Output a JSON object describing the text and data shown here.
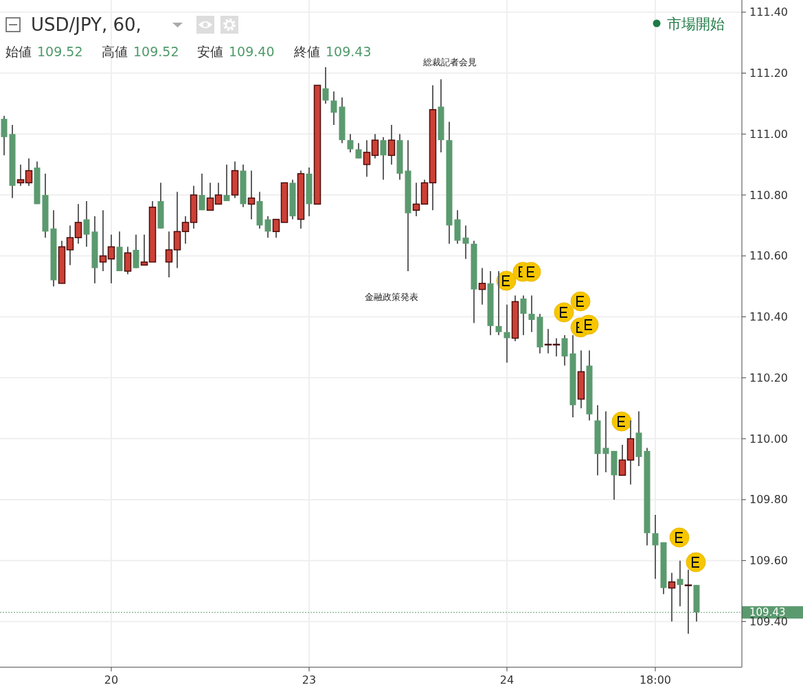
{
  "chart_data": {
    "type": "candlestick",
    "title": "USD/JPY, 60,",
    "categories": [
      null,
      null,
      null,
      null,
      null,
      null,
      null,
      null,
      null,
      null,
      null,
      null,
      null,
      "20",
      null,
      null,
      null,
      null,
      null,
      null,
      null,
      null,
      null,
      null,
      null,
      null,
      null,
      null,
      null,
      null,
      null,
      null,
      null,
      null,
      null,
      null,
      null,
      "23",
      null,
      null,
      null,
      null,
      null,
      null,
      null,
      null,
      null,
      null,
      null,
      null,
      null,
      null,
      null,
      null,
      null,
      null,
      null,
      null,
      null,
      null,
      null,
      "24",
      null,
      null,
      null,
      null,
      null,
      null,
      null,
      null,
      null,
      null,
      null,
      null,
      null,
      null,
      null,
      null,
      null,
      "18:00",
      null,
      null,
      null,
      null,
      null
    ],
    "ohlc": [
      [
        111.05,
        111.06,
        110.93,
        110.99
      ],
      [
        111.0,
        111.03,
        110.79,
        110.83
      ],
      [
        110.84,
        110.9,
        110.83,
        110.85
      ],
      [
        110.84,
        110.92,
        110.83,
        110.88
      ],
      [
        110.89,
        110.91,
        110.77,
        110.77
      ],
      [
        110.8,
        110.87,
        110.66,
        110.68
      ],
      [
        110.69,
        110.75,
        110.5,
        110.52
      ],
      [
        110.51,
        110.65,
        110.51,
        110.63
      ],
      [
        110.62,
        110.7,
        110.57,
        110.66
      ],
      [
        110.66,
        110.77,
        110.64,
        110.71
      ],
      [
        110.72,
        110.78,
        110.63,
        110.67
      ],
      [
        110.68,
        110.73,
        110.51,
        110.56
      ],
      [
        110.58,
        110.75,
        110.55,
        110.6
      ],
      [
        110.59,
        110.67,
        110.51,
        110.63
      ],
      [
        110.63,
        110.68,
        110.55,
        110.55
      ],
      [
        110.55,
        110.63,
        110.54,
        110.61
      ],
      [
        110.62,
        110.67,
        110.56,
        110.56
      ],
      [
        110.57,
        110.67,
        110.57,
        110.58
      ],
      [
        110.58,
        110.78,
        110.58,
        110.76
      ],
      [
        110.78,
        110.84,
        110.69,
        110.69
      ],
      [
        110.58,
        110.68,
        110.53,
        110.62
      ],
      [
        110.62,
        110.81,
        110.56,
        110.68
      ],
      [
        110.68,
        110.73,
        110.64,
        110.71
      ],
      [
        110.71,
        110.83,
        110.69,
        110.8
      ],
      [
        110.8,
        110.87,
        110.75,
        110.75
      ],
      [
        110.75,
        110.84,
        110.75,
        110.79
      ],
      [
        110.77,
        110.84,
        110.77,
        110.8
      ],
      [
        110.8,
        110.9,
        110.78,
        110.78
      ],
      [
        110.8,
        110.91,
        110.79,
        110.88
      ],
      [
        110.88,
        110.9,
        110.76,
        110.77
      ],
      [
        110.77,
        110.88,
        110.72,
        110.79
      ],
      [
        110.78,
        110.81,
        110.69,
        110.7
      ],
      [
        110.72,
        110.73,
        110.66,
        110.68
      ],
      [
        110.68,
        110.72,
        110.66,
        110.72
      ],
      [
        110.71,
        110.84,
        110.71,
        110.84
      ],
      [
        110.84,
        110.85,
        110.72,
        110.73
      ],
      [
        110.72,
        110.88,
        110.69,
        110.87
      ],
      [
        110.87,
        110.89,
        110.73,
        110.77
      ],
      [
        110.77,
        111.16,
        110.77,
        111.16
      ],
      [
        111.15,
        111.22,
        111.1,
        111.11
      ],
      [
        111.11,
        111.14,
        111.03,
        111.07
      ],
      [
        111.09,
        111.12,
        110.97,
        110.98
      ],
      [
        110.98,
        111.0,
        110.94,
        110.95
      ],
      [
        110.95,
        110.97,
        110.92,
        110.92
      ],
      [
        110.9,
        110.98,
        110.86,
        110.94
      ],
      [
        110.93,
        111.0,
        110.92,
        110.98
      ],
      [
        110.98,
        110.99,
        110.85,
        110.93
      ],
      [
        110.93,
        111.03,
        110.9,
        110.98
      ],
      [
        110.98,
        111.0,
        110.85,
        110.87
      ],
      [
        110.88,
        110.98,
        110.55,
        110.74
      ],
      [
        110.75,
        110.84,
        110.73,
        110.77
      ],
      [
        110.77,
        110.85,
        110.77,
        110.84
      ],
      [
        110.84,
        111.16,
        110.75,
        111.08
      ],
      [
        111.09,
        111.18,
        110.94,
        110.98
      ],
      [
        110.98,
        111.04,
        110.64,
        110.7
      ],
      [
        110.72,
        110.75,
        110.64,
        110.65
      ],
      [
        110.66,
        110.7,
        110.59,
        110.64
      ],
      [
        110.64,
        110.65,
        110.38,
        110.49
      ],
      [
        110.49,
        110.56,
        110.44,
        110.51
      ],
      [
        110.51,
        110.55,
        110.34,
        110.37
      ],
      [
        110.37,
        110.55,
        110.34,
        110.35
      ],
      [
        110.35,
        110.44,
        110.25,
        110.33
      ],
      [
        110.33,
        110.47,
        110.32,
        110.45
      ],
      [
        110.46,
        110.47,
        110.34,
        110.41
      ],
      [
        110.41,
        110.47,
        110.35,
        110.39
      ],
      [
        110.4,
        110.41,
        110.28,
        110.3
      ],
      [
        110.31,
        110.36,
        110.28,
        110.31
      ],
      [
        110.31,
        110.33,
        110.27,
        110.31
      ],
      [
        110.33,
        110.34,
        110.24,
        110.27
      ],
      [
        110.28,
        110.34,
        110.07,
        110.11
      ],
      [
        110.13,
        110.29,
        110.1,
        110.22
      ],
      [
        110.24,
        110.29,
        110.06,
        110.08
      ],
      [
        110.06,
        110.11,
        109.88,
        109.95
      ],
      [
        109.97,
        110.09,
        109.89,
        109.95
      ],
      [
        109.96,
        109.96,
        109.8,
        109.88
      ],
      [
        109.88,
        109.98,
        109.88,
        109.93
      ],
      [
        109.93,
        110.06,
        109.85,
        110.0
      ],
      [
        110.02,
        110.09,
        109.91,
        109.94
      ],
      [
        109.96,
        109.97,
        109.65,
        109.69
      ],
      [
        109.69,
        109.75,
        109.54,
        109.65
      ],
      [
        109.66,
        109.66,
        109.49,
        109.51
      ],
      [
        109.51,
        109.56,
        109.4,
        109.53
      ],
      [
        109.54,
        109.6,
        109.45,
        109.52
      ],
      [
        109.52,
        109.57,
        109.36,
        109.52
      ],
      [
        109.52,
        109.52,
        109.4,
        109.43
      ]
    ],
    "colors": [
      "#5b9a6f",
      "#5b9a6f",
      "#cc4136",
      "#cc4136",
      "#5b9a6f",
      "#5b9a6f",
      "#5b9a6f",
      "#cc4136",
      "#cc4136",
      "#cc4136",
      "#5b9a6f",
      "#5b9a6f",
      "#cc4136",
      "#cc4136",
      "#5b9a6f",
      "#cc4136",
      "#5b9a6f",
      "#cc4136",
      "#cc4136",
      "#5b9a6f",
      "#cc4136",
      "#cc4136",
      "#cc4136",
      "#cc4136",
      "#5b9a6f",
      "#cc4136",
      "#cc4136",
      "#5b9a6f",
      "#cc4136",
      "#5b9a6f",
      "#cc4136",
      "#5b9a6f",
      "#5b9a6f",
      "#cc4136",
      "#cc4136",
      "#5b9a6f",
      "#cc4136",
      "#5b9a6f",
      "#cc4136",
      "#5b9a6f",
      "#5b9a6f",
      "#5b9a6f",
      "#5b9a6f",
      "#5b9a6f",
      "#cc4136",
      "#cc4136",
      "#5b9a6f",
      "#cc4136",
      "#5b9a6f",
      "#5b9a6f",
      "#cc4136",
      "#cc4136",
      "#cc4136",
      "#5b9a6f",
      "#5b9a6f",
      "#5b9a6f",
      "#5b9a6f",
      "#5b9a6f",
      "#cc4136",
      "#5b9a6f",
      "#5b9a6f",
      "#5b9a6f",
      "#cc4136",
      "#5b9a6f",
      "#5b9a6f",
      "#5b9a6f",
      "#cc4136",
      "#cc4136",
      "#5b9a6f",
      "#5b9a6f",
      "#cc4136",
      "#5b9a6f",
      "#5b9a6f",
      "#5b9a6f",
      "#5b9a6f",
      "#cc4136",
      "#cc4136",
      "#5b9a6f",
      "#5b9a6f",
      "#5b9a6f",
      "#5b9a6f",
      "#cc4136",
      "#5b9a6f",
      "#cc4136",
      "#5b9a6f"
    ],
    "ylim": [
      109.25,
      111.44
    ],
    "yticks": [
      {
        "value": 109.4,
        "label": "109.40"
      },
      {
        "value": 109.6,
        "label": "109.60"
      },
      {
        "value": 109.8,
        "label": "109.80"
      },
      {
        "value": 110.0,
        "label": "110.00"
      },
      {
        "value": 110.2,
        "label": "110.20"
      },
      {
        "value": 110.4,
        "label": "110.40"
      },
      {
        "value": 110.6,
        "label": "110.60"
      },
      {
        "value": 110.8,
        "label": "110.80"
      },
      {
        "value": 111.0,
        "label": "111.00"
      },
      {
        "value": 111.2,
        "label": "111.20"
      },
      {
        "value": 111.4,
        "label": "111.40"
      }
    ],
    "grid": true,
    "ref_lines": [
      {
        "axis": "y",
        "value": 109.43,
        "label": "109.43",
        "color": "#5b9a6f",
        "line_style": "dotted"
      }
    ],
    "annotations": [
      "市場開始",
      "始値 109.52",
      "高値 109.52",
      "安値 109.40",
      "終値 109.43",
      "総裁記者会見",
      "金融政策発表"
    ]
  }
}
